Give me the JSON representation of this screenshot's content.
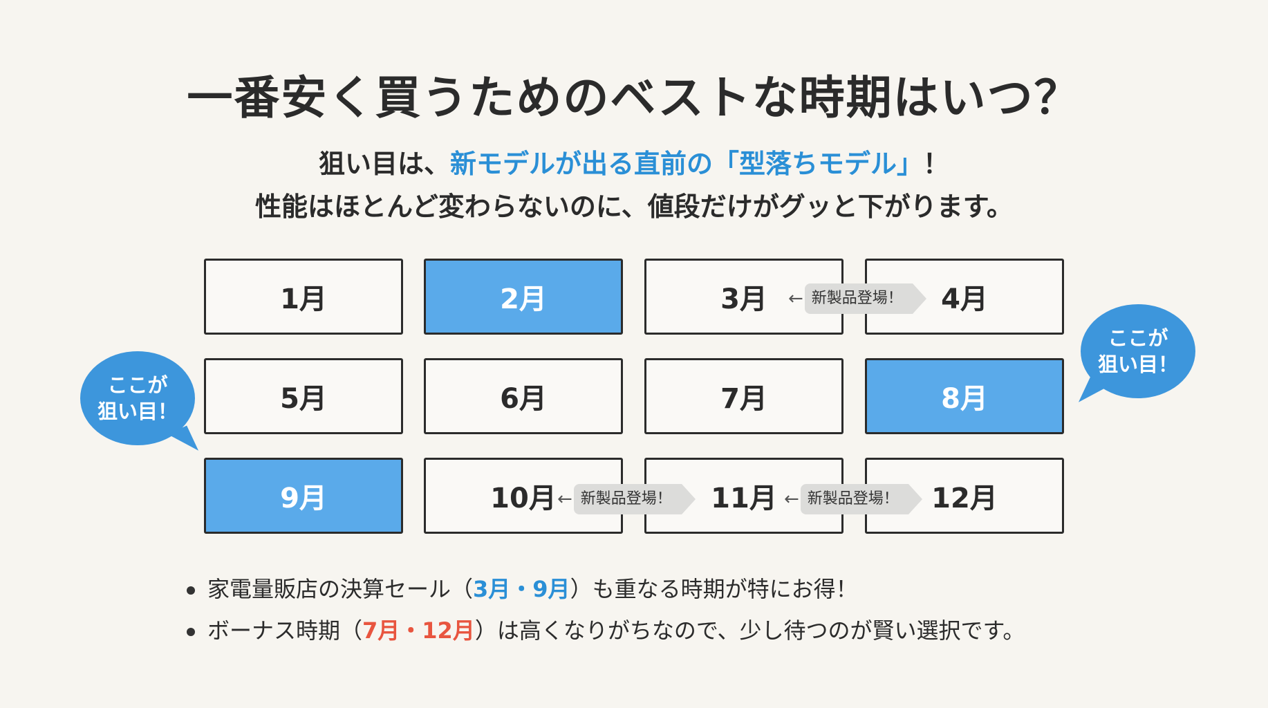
{
  "title": "一番安く買うためのベストな時期はいつ？",
  "subtitle": {
    "line1_pre": "狙い目は、",
    "line1_highlight": "新モデルが出る直前の「型落ちモデル」",
    "line1_post": "！",
    "line2": "性能はほとんど変わらないのに、値段だけがグッと下がります。"
  },
  "accent_colors": {
    "highlight_box": "#5aaaea",
    "bubble": "#3d96dc",
    "blue_text": "#2a8fd6",
    "red_text": "#e8553f"
  },
  "months": [
    {
      "label": "1月",
      "highlighted": false
    },
    {
      "label": "2月",
      "highlighted": true
    },
    {
      "label": "3月",
      "highlighted": false
    },
    {
      "label": "4月",
      "highlighted": false
    },
    {
      "label": "5月",
      "highlighted": false
    },
    {
      "label": "6月",
      "highlighted": false
    },
    {
      "label": "7月",
      "highlighted": false
    },
    {
      "label": "8月",
      "highlighted": true
    },
    {
      "label": "9月",
      "highlighted": true
    },
    {
      "label": "10月",
      "highlighted": false
    },
    {
      "label": "11月",
      "highlighted": false
    },
    {
      "label": "12月",
      "highlighted": false
    }
  ],
  "tags": [
    {
      "arrow": "←",
      "text": "新製品登場！"
    },
    {
      "arrow": "←",
      "text": "新製品登場！"
    },
    {
      "arrow": "←",
      "text": "新製品登場！"
    }
  ],
  "bubbles": {
    "left": {
      "line1": "ここが",
      "line2": "狙い目！"
    },
    "right": {
      "line1": "ここが",
      "line2": "狙い目！"
    }
  },
  "bullets": [
    {
      "pre": "家電量販店の決算セール（",
      "highlight": "3月・9月",
      "post": "）も重なる時期が特にお得！"
    },
    {
      "pre": "ボーナス時期（",
      "highlight": "7月・12月",
      "post": "）は高くなりがちなので、少し待つのが賢い選択です。"
    }
  ]
}
